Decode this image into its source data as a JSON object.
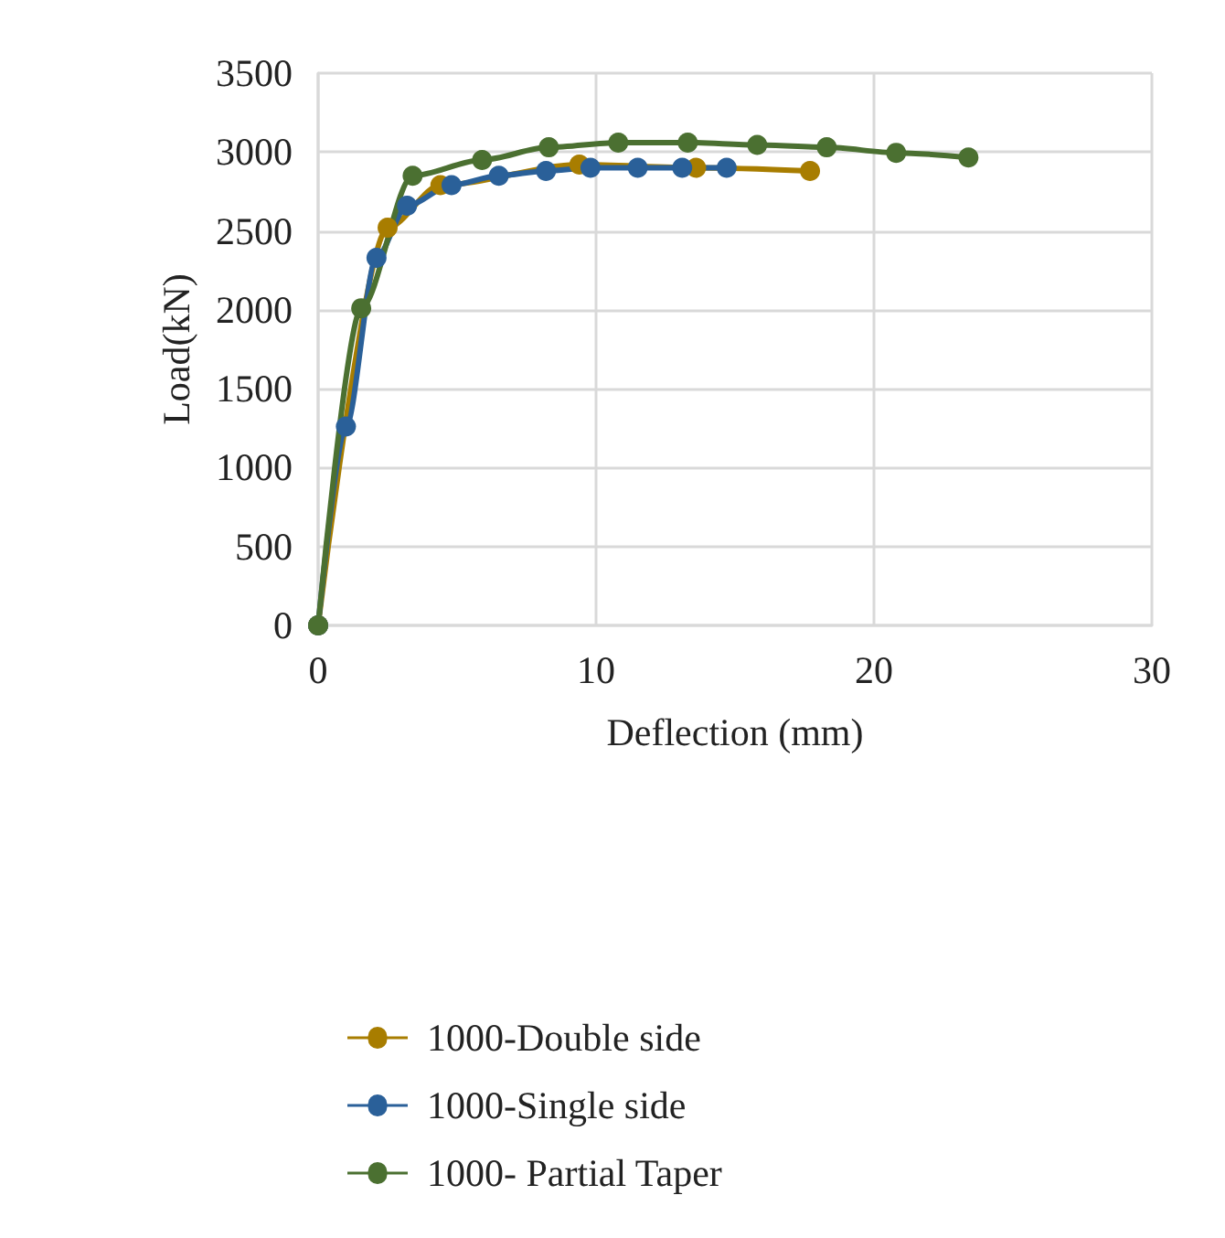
{
  "chart_data": {
    "type": "line",
    "xlabel": "Deflection (mm)",
    "ylabel": "Load(kN)",
    "xlim": [
      0,
      30
    ],
    "xticks": [
      0,
      10,
      20,
      30
    ],
    "ylim": [
      0,
      3500
    ],
    "yticks": [
      0,
      500,
      1000,
      1500,
      2000,
      2500,
      3000,
      3500
    ],
    "grid": true,
    "legend": "bottom",
    "marker": "circle",
    "line_style": "solid",
    "series": [
      {
        "name": "1000-Double side",
        "color": "#a87d00",
        "x": [
          0,
          2.5,
          4.4,
          9.4,
          13.6,
          17.7
        ],
        "values": [
          0,
          2520,
          2790,
          2920,
          2900,
          2880
        ]
      },
      {
        "name": "1000-Single side",
        "color": "#2a6099",
        "x": [
          0,
          1.0,
          2.1,
          3.2,
          4.8,
          6.5,
          8.2,
          9.8,
          11.5,
          13.1,
          14.7
        ],
        "values": [
          0,
          1260,
          2330,
          2660,
          2790,
          2850,
          2880,
          2900,
          2900,
          2900,
          2900
        ]
      },
      {
        "name": "1000- Partial Taper",
        "color": "#4b7031",
        "x": [
          0,
          1.55,
          3.4,
          5.9,
          8.3,
          10.8,
          13.3,
          15.8,
          18.3,
          20.8,
          23.4
        ],
        "values": [
          0,
          2010,
          2850,
          2950,
          3030,
          3060,
          3060,
          3045,
          3030,
          2995,
          2965
        ]
      }
    ]
  }
}
